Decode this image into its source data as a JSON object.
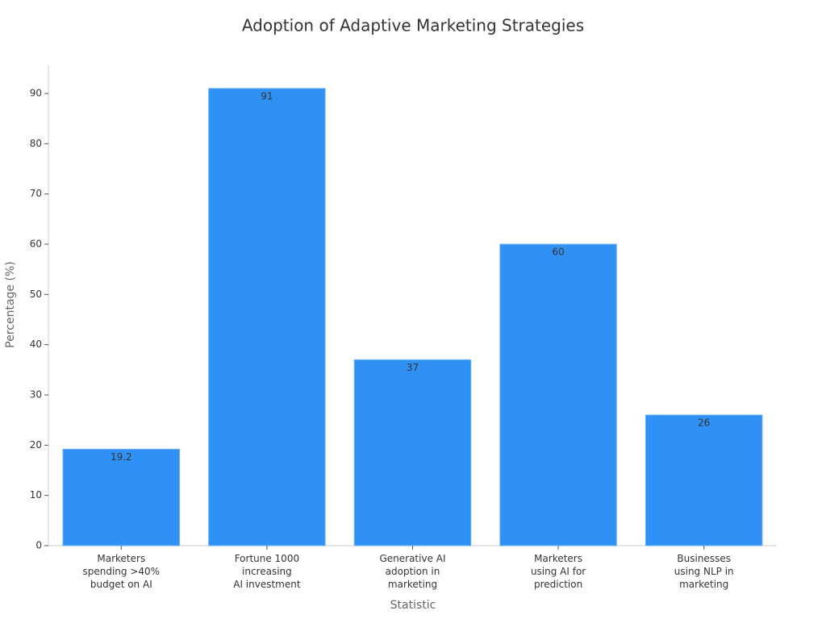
{
  "chart_data": {
    "type": "bar",
    "title": "Adoption of Adaptive Marketing Strategies",
    "x_label": "Statistic",
    "y_label": "Percentage (%)",
    "categories": [
      [
        "Marketers",
        "spending >40%",
        "budget on AI"
      ],
      [
        "Fortune 1000",
        "increasing",
        "AI investment"
      ],
      [
        "Generative AI",
        "adoption in",
        "marketing"
      ],
      [
        "Marketers",
        "using AI for",
        "prediction"
      ],
      [
        "Businesses",
        "using NLP in",
        "marketing"
      ]
    ],
    "values": [
      19.2,
      91,
      37,
      60,
      26
    ],
    "color": "#3091f5",
    "ylim": [
      0,
      95.55
    ],
    "yticks": [
      0,
      10,
      20,
      30,
      40,
      50,
      60,
      70,
      80,
      90
    ],
    "grid": false
  }
}
